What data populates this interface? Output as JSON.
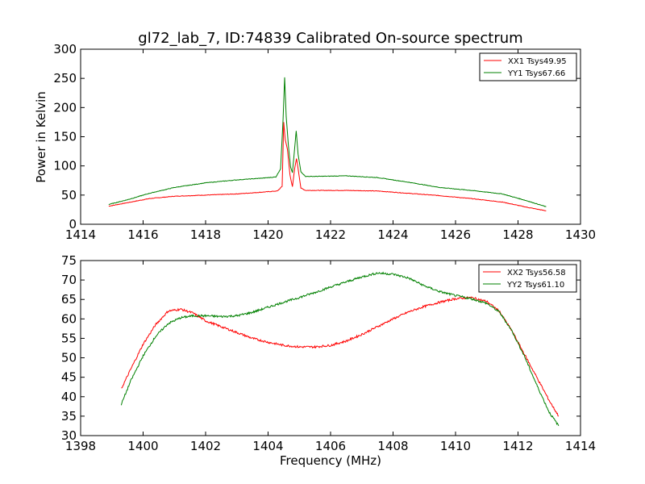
{
  "figure_title": "gl72_lab_7, ID:74839 Calibrated On-source spectrum",
  "chart_data": [
    {
      "type": "line",
      "title": "gl72_lab_7, ID:74839 Calibrated On-source spectrum",
      "xlabel": "",
      "ylabel": "Power in Kelvin",
      "xlim": [
        1414,
        1430
      ],
      "ylim": [
        0,
        300
      ],
      "xticks": [
        "1414",
        "1416",
        "1418",
        "1420",
        "1422",
        "1424",
        "1426",
        "1428",
        "1430"
      ],
      "yticks": [
        "0",
        "50",
        "100",
        "150",
        "200",
        "250",
        "300"
      ],
      "legend_position": "top-right",
      "grid": false,
      "series": [
        {
          "name": "XX1 Tsys49.95",
          "color": "#ff0000",
          "x": [
            1414.9,
            1415.5,
            1416.2,
            1417.0,
            1418.0,
            1419.0,
            1419.8,
            1420.3,
            1420.45,
            1420.5,
            1420.55,
            1420.62,
            1420.7,
            1420.78,
            1420.85,
            1420.91,
            1420.97,
            1421.05,
            1421.2,
            1421.5,
            1422.5,
            1423.5,
            1424.5,
            1425.5,
            1426.5,
            1427.5,
            1428.3,
            1428.9
          ],
          "y": [
            31,
            37,
            44,
            48,
            50,
            52,
            55,
            57,
            65,
            175,
            145,
            128,
            85,
            64,
            95,
            113,
            92,
            62,
            58,
            58,
            58,
            57,
            53,
            49,
            44,
            38,
            29,
            23
          ]
        },
        {
          "name": "YY1 Tsys67.66",
          "color": "#008000",
          "x": [
            1414.9,
            1415.5,
            1416.2,
            1417.0,
            1418.0,
            1419.0,
            1419.8,
            1420.25,
            1420.4,
            1420.48,
            1420.53,
            1420.58,
            1420.65,
            1420.72,
            1420.78,
            1420.85,
            1420.9,
            1420.96,
            1421.05,
            1421.2,
            1421.5,
            1422.5,
            1423.5,
            1424.5,
            1425.5,
            1426.5,
            1427.5,
            1428.3,
            1428.9
          ],
          "y": [
            34,
            42,
            53,
            63,
            71,
            76,
            79,
            81,
            95,
            180,
            252,
            185,
            135,
            98,
            88,
            130,
            160,
            120,
            90,
            82,
            82,
            83,
            80,
            72,
            63,
            58,
            52,
            40,
            30
          ]
        }
      ]
    },
    {
      "type": "line",
      "title": "",
      "xlabel": "Frequency (MHz)",
      "ylabel": "",
      "xlim": [
        1398,
        1414
      ],
      "ylim": [
        30,
        75
      ],
      "xticks": [
        "1398",
        "1400",
        "1402",
        "1404",
        "1406",
        "1408",
        "1410",
        "1412",
        "1414"
      ],
      "yticks": [
        "30",
        "35",
        "40",
        "45",
        "50",
        "55",
        "60",
        "65",
        "70",
        "75"
      ],
      "legend_position": "top-right",
      "grid": false,
      "series": [
        {
          "name": "XX2 Tsys56.58",
          "color": "#ff0000",
          "x": [
            1399.3,
            1399.6,
            1400.0,
            1400.4,
            1400.8,
            1401.2,
            1401.6,
            1402.0,
            1402.5,
            1403.0,
            1403.5,
            1404.0,
            1404.5,
            1405.0,
            1405.5,
            1406.0,
            1406.5,
            1407.0,
            1407.5,
            1408.0,
            1408.5,
            1409.0,
            1409.5,
            1410.0,
            1410.5,
            1411.0,
            1411.4,
            1411.8,
            1412.2,
            1412.6,
            1413.0,
            1413.3
          ],
          "y": [
            42,
            47,
            53.5,
            58.5,
            62,
            62.5,
            61.5,
            59.5,
            58,
            56.5,
            55,
            54,
            53.2,
            52.8,
            52.8,
            53.2,
            54.3,
            56,
            58,
            60,
            61.8,
            63.2,
            64.3,
            65.2,
            65.5,
            64.5,
            62,
            57,
            51,
            45,
            39,
            35
          ]
        },
        {
          "name": "YY2 Tsys61.10",
          "color": "#008000",
          "x": [
            1399.3,
            1399.6,
            1400.0,
            1400.4,
            1400.8,
            1401.2,
            1401.6,
            1402.0,
            1402.5,
            1403.0,
            1403.5,
            1404.0,
            1404.5,
            1405.0,
            1405.5,
            1406.0,
            1406.5,
            1407.0,
            1407.5,
            1408.0,
            1408.5,
            1409.0,
            1409.5,
            1410.0,
            1410.5,
            1411.0,
            1411.4,
            1411.8,
            1412.2,
            1412.6,
            1413.0,
            1413.3
          ],
          "y": [
            38,
            44,
            50.5,
            55.5,
            58.8,
            60.3,
            60.8,
            60.8,
            60.6,
            60.8,
            61.7,
            63,
            64.3,
            65.5,
            66.8,
            68.2,
            69.5,
            70.8,
            71.8,
            71.5,
            70.5,
            68.5,
            67,
            66,
            65.2,
            64,
            61.8,
            57,
            50.5,
            43,
            36,
            32.5
          ]
        }
      ]
    }
  ]
}
